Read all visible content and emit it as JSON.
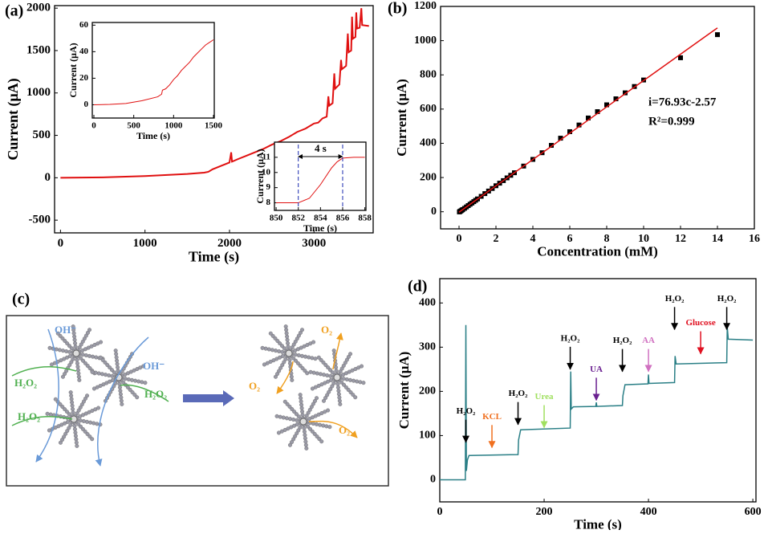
{
  "chart_data": [
    {
      "type": "line",
      "panel_label": "(a)",
      "xlabel": "Time (s)",
      "ylabel": "Current (μA)",
      "xlim": [
        -70,
        3700
      ],
      "ylim": [
        -650,
        2030
      ],
      "xticks": [
        0,
        1000,
        2000,
        3000
      ],
      "yticks": [
        -500,
        0,
        500,
        1000,
        1500,
        2000
      ],
      "series": [
        {
          "type": "line",
          "color": "#e01010",
          "x": [
            0,
            500,
            1000,
            1500,
            1700,
            1750,
            1800,
            1900,
            2000,
            2020,
            2030,
            2100,
            2200,
            2300,
            2400,
            2500,
            2600,
            2700,
            2800,
            2900,
            3000,
            3050,
            3100,
            3150,
            3170,
            3180,
            3220,
            3240,
            3250,
            3300,
            3320,
            3330,
            3380,
            3400,
            3410,
            3440,
            3450,
            3460,
            3490,
            3500,
            3510,
            3540,
            3560,
            3570,
            3650
          ],
          "values": [
            0,
            5,
            20,
            45,
            60,
            70,
            100,
            140,
            180,
            300,
            190,
            220,
            260,
            300,
            340,
            390,
            430,
            480,
            540,
            580,
            640,
            650,
            700,
            720,
            960,
            850,
            880,
            1230,
            1050,
            1100,
            1390,
            1280,
            1320,
            1700,
            1480,
            1500,
            1900,
            1640,
            1660,
            1950,
            1760,
            1770,
            2000,
            1800,
            1790
          ]
        }
      ]
    },
    {
      "type": "line",
      "xlabel": "Time (s)",
      "ylabel": "Current (μA)",
      "xlim": [
        -20,
        1510
      ],
      "ylim": [
        -10,
        62
      ],
      "xticks": [
        0,
        500,
        1000,
        1500
      ],
      "yticks": [
        0,
        20,
        40,
        60
      ],
      "series": [
        {
          "type": "line",
          "color": "#e01010",
          "x": [
            0,
            200,
            400,
            600,
            800,
            850,
            860,
            900,
            950,
            1000,
            1050,
            1100,
            1150,
            1200,
            1250,
            1300,
            1350,
            1400,
            1450,
            1500
          ],
          "values": [
            0,
            0.3,
            1,
            3,
            6,
            8,
            11,
            12,
            15,
            19,
            22,
            26,
            29,
            32,
            36,
            39,
            42,
            45,
            47,
            49
          ]
        }
      ]
    },
    {
      "type": "line",
      "xlabel": "Time (s)",
      "ylabel": "Current (μA)",
      "xlim": [
        849.85,
        858.1
      ],
      "ylim": [
        7.5,
        12
      ],
      "xticks": [
        850,
        852,
        854,
        856,
        858
      ],
      "yticks": [
        8,
        9,
        10,
        11
      ],
      "annotation": {
        "text": "4 s",
        "x": [
          852,
          856
        ]
      },
      "series": [
        {
          "type": "line",
          "color": "#e01010",
          "x": [
            850,
            851,
            852,
            853,
            854,
            855,
            855.5,
            856,
            857,
            858
          ],
          "values": [
            8,
            8,
            8,
            8.3,
            9.2,
            10.3,
            10.7,
            10.95,
            11,
            11
          ]
        }
      ]
    },
    {
      "type": "scatter",
      "panel_label": "(b)",
      "xlabel": "Concentration (mM)",
      "ylabel": "Current (μA)",
      "xlim": [
        -1,
        16
      ],
      "ylim": [
        -100,
        1200
      ],
      "xticks": [
        0,
        2,
        4,
        6,
        8,
        10,
        12,
        14,
        16
      ],
      "yticks": [
        0,
        200,
        400,
        600,
        800,
        1000,
        1200
      ],
      "annotations": [
        "i=76.93c-2.57",
        "R²=0.999"
      ],
      "series": [
        {
          "type": "scatter",
          "color": "#000000",
          "x": [
            0.02,
            0.05,
            0.1,
            0.15,
            0.2,
            0.3,
            0.4,
            0.5,
            0.6,
            0.7,
            0.8,
            0.9,
            1.0,
            1.2,
            1.4,
            1.6,
            1.8,
            2.0,
            2.2,
            2.4,
            2.6,
            2.8,
            3.0,
            3.5,
            4.0,
            4.5,
            5.0,
            5.5,
            6.0,
            6.5,
            7.0,
            7.5,
            8.0,
            8.5,
            9.0,
            9.5,
            10,
            12,
            14
          ],
          "values": [
            -1,
            2,
            5,
            9,
            13,
            20,
            28,
            36,
            44,
            51,
            59,
            67,
            75,
            90,
            106,
            121,
            136,
            152,
            167,
            182,
            198,
            213,
            228,
            267,
            306,
            345,
            388,
            430,
            468,
            507,
            548,
            585,
            625,
            660,
            695,
            732,
            770,
            900,
            1035
          ]
        },
        {
          "type": "line",
          "color": "#e01010",
          "x": [
            0,
            14
          ],
          "values": [
            -2.57,
            1074.45
          ]
        }
      ]
    },
    {
      "type": "line",
      "panel_label": "(d)",
      "xlabel": "Time (s)",
      "ylabel": "Current (μA)",
      "xlim": [
        0,
        606
      ],
      "ylim": [
        -50,
        455
      ],
      "xticks": [
        0,
        200,
        400,
        600
      ],
      "yticks": [
        0,
        100,
        200,
        300,
        400
      ],
      "series": [
        {
          "type": "line",
          "color": "#2a7f86",
          "x": [
            0,
            49,
            50,
            51,
            53,
            56,
            150,
            151,
            155,
            250,
            251,
            252,
            256,
            299,
            300,
            301,
            350,
            351,
            355,
            399,
            400,
            401,
            450,
            451,
            453,
            550,
            551,
            553,
            600
          ],
          "values": [
            0,
            0,
            350,
            20,
            45,
            55,
            57,
            90,
            113,
            117,
            245,
            160,
            165,
            166,
            175,
            166,
            168,
            190,
            215,
            217,
            238,
            218,
            220,
            280,
            262,
            265,
            345,
            318,
            316
          ]
        }
      ],
      "annotations": [
        {
          "label": "H₂O₂",
          "color": "#000000",
          "x": 50,
          "y": 85
        },
        {
          "label": "KCL",
          "color": "#f07020",
          "x": 100,
          "y": 73
        },
        {
          "label": "H₂O₂",
          "color": "#000000",
          "x": 150,
          "y": 125
        },
        {
          "label": "Urea",
          "color": "#a0e060",
          "x": 200,
          "y": 118
        },
        {
          "label": "H₂O₂",
          "color": "#000000",
          "x": 250,
          "y": 250
        },
        {
          "label": "UA",
          "color": "#6a2090",
          "x": 300,
          "y": 180
        },
        {
          "label": "H₂O₂",
          "color": "#000000",
          "x": 350,
          "y": 245
        },
        {
          "label": "AA",
          "color": "#d070c0",
          "x": 400,
          "y": 245
        },
        {
          "label": "H₂O₂",
          "color": "#000000",
          "x": 450,
          "y": 340
        },
        {
          "label": "Glucose",
          "color": "#e01020",
          "x": 500,
          "y": 285
        },
        {
          "label": "H₂O₂",
          "color": "#000000",
          "x": 550,
          "y": 340
        }
      ]
    }
  ],
  "diagram": {
    "panel_label": "(c)",
    "left_labels": [
      "OH⁻",
      "OH⁻",
      "H₂O₂",
      "H₂O₂",
      "H₂O₂"
    ],
    "right_labels": [
      "O₂",
      "O₂",
      "O₂"
    ]
  }
}
